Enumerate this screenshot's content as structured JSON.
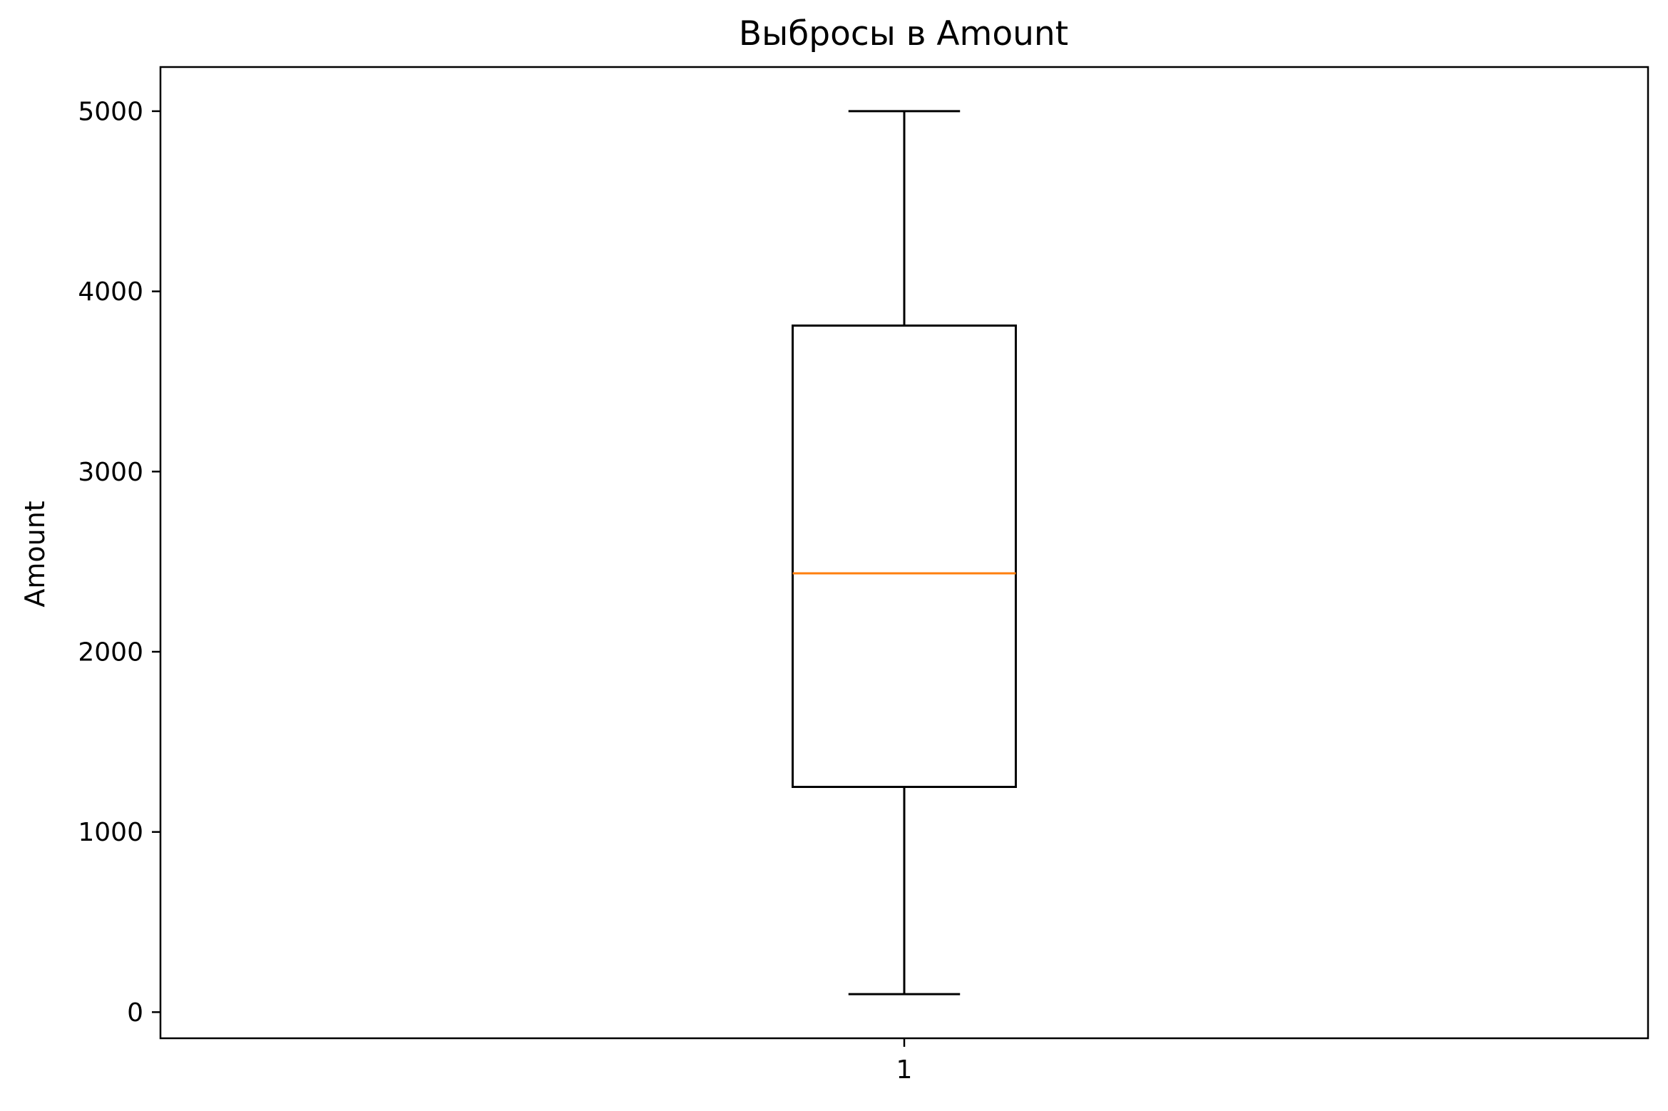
{
  "chart_data": {
    "type": "box",
    "title": "Выбросы в Amount",
    "xlabel": "",
    "ylabel": "Amount",
    "categories": [
      "1"
    ],
    "boxes": [
      {
        "category": "1",
        "whisker_low": 100,
        "q1": 1250,
        "median": 2435,
        "q3": 3810,
        "whisker_high": 5000
      }
    ],
    "ylim": [
      -145,
      5245
    ],
    "y_ticks": [
      0,
      1000,
      2000,
      3000,
      4000,
      5000
    ],
    "y_tick_labels": [
      "0",
      "1000",
      "2000",
      "3000",
      "4000",
      "5000"
    ],
    "grid": false,
    "colors": {
      "box": "#000000",
      "median": "#ff7f0e",
      "whisker": "#000000"
    }
  }
}
